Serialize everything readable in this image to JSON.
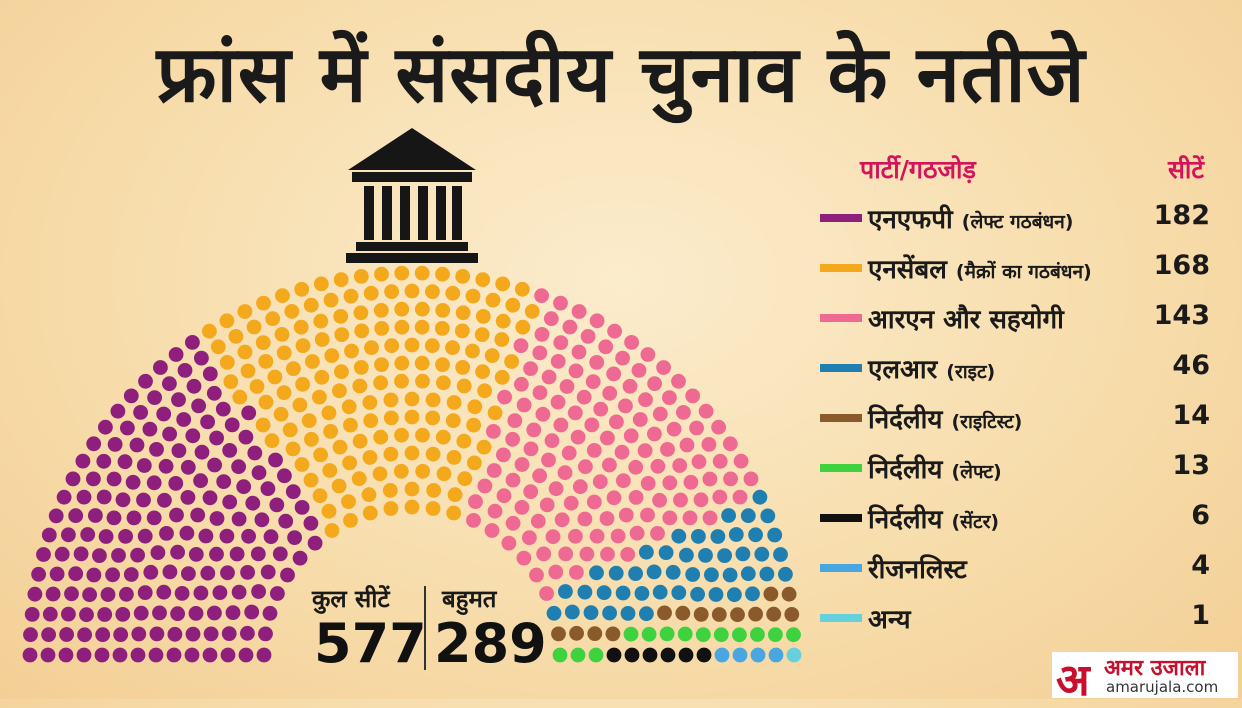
{
  "title": "फ्रांस में संसदीय चुनाव के नतीजे",
  "legend_header": {
    "party_label": "पार्टी/गठजोड़",
    "seats_label": "सीटें"
  },
  "totals": {
    "total_label": "कुल सीटें",
    "total_value": "577",
    "majority_label": "बहुमत",
    "majority_value": "289"
  },
  "logo": {
    "brand": "अमर उजाला",
    "url": "amarujala.com"
  },
  "chart_data": {
    "type": "parliament",
    "total_seats": 577,
    "majority": 289,
    "series": [
      {
        "name": "एनएफपी",
        "qualifier": "(लेफ्ट गठबंधन)",
        "value": 182,
        "color": "#8e1f7c"
      },
      {
        "name": "एनसेंबल",
        "qualifier": "(मैक्रों का गठबंधन)",
        "value": 168,
        "color": "#f4a81c"
      },
      {
        "name": "आरएन और सहयोगी",
        "qualifier": "",
        "value": 143,
        "color": "#ef6a93"
      },
      {
        "name": "एलआर",
        "qualifier": "(राइट)",
        "value": 46,
        "color": "#1e7fb0"
      },
      {
        "name": "निर्दलीय",
        "qualifier": "(राइटिस्ट)",
        "value": 14,
        "color": "#8b5a2b"
      },
      {
        "name": "निर्दलीय",
        "qualifier": "(लेफ्ट)",
        "value": 13,
        "color": "#3fd23f"
      },
      {
        "name": "निर्दलीय",
        "qualifier": "(सेंटर)",
        "value": 6,
        "color": "#111111"
      },
      {
        "name": "रीजनलिस्ट",
        "qualifier": "",
        "value": 4,
        "color": "#4aa6e0"
      },
      {
        "name": "अन्य",
        "qualifier": "",
        "value": 1,
        "color": "#66d1dd"
      }
    ]
  }
}
